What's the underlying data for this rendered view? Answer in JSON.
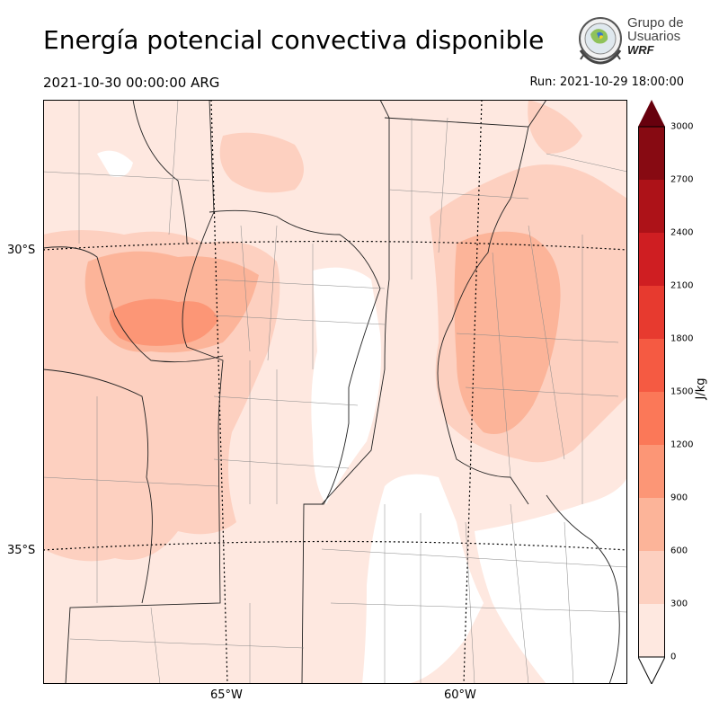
{
  "header": {
    "title": "Energía potencial convectiva disponible",
    "valid_time": "2021-10-30 00:00:00 ARG",
    "run_time": "Run: 2021-10-29 18:00:00"
  },
  "logo": {
    "line1": "Grupo de",
    "line2": "Usuarios",
    "line3": "WRF"
  },
  "map": {
    "lat_labels": [
      "30°S",
      "35°S"
    ],
    "lon_labels": [
      "65°W",
      "60°W"
    ]
  },
  "colorbar": {
    "unit": "J/kg",
    "ticks": [
      "0",
      "300",
      "600",
      "900",
      "1200",
      "1500",
      "1800",
      "2100",
      "2400",
      "2700",
      "3000"
    ],
    "colors": [
      "#fee8e0",
      "#fdd0c0",
      "#fcb499",
      "#fc9676",
      "#fb7858",
      "#f55a42",
      "#e73a2f",
      "#cf1e22",
      "#ad1218",
      "#870a12"
    ],
    "over_color": "#67000d"
  }
}
